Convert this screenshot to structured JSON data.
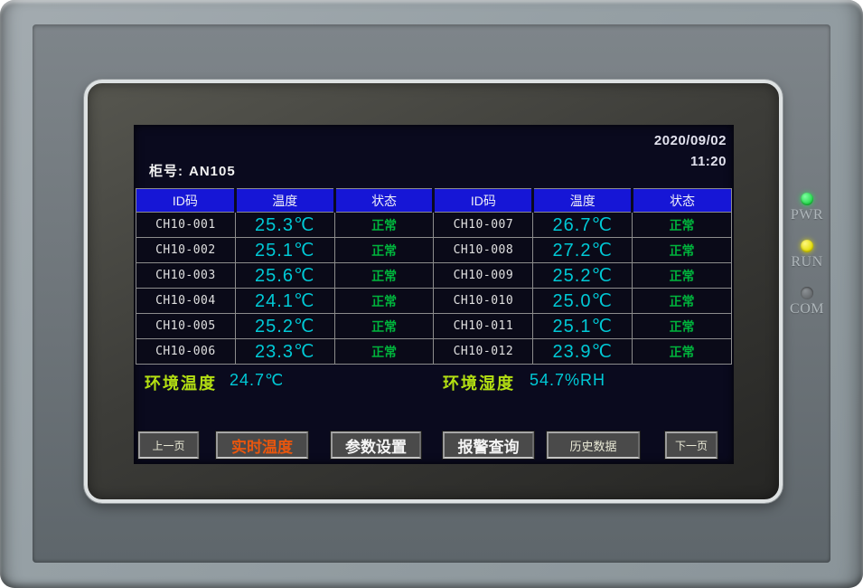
{
  "device": {
    "leds": [
      {
        "name": "PWR",
        "status": "on",
        "color": "#22d84a"
      },
      {
        "name": "RUN",
        "status": "on",
        "color": "#e2dc00"
      },
      {
        "name": "COM",
        "status": "off",
        "color": "#65696c"
      }
    ]
  },
  "screen": {
    "date": "2020/09/02",
    "time": "11:20",
    "cabinet_label": "柜号:",
    "cabinet_value": "AN105",
    "table": {
      "headers": [
        "ID码",
        "温度",
        "状态",
        "ID码",
        "温度",
        "状态"
      ],
      "rows": [
        [
          "CH10-001",
          "25.3℃",
          "正常",
          "CH10-007",
          "26.7℃",
          "正常"
        ],
        [
          "CH10-002",
          "25.1℃",
          "正常",
          "CH10-008",
          "27.2℃",
          "正常"
        ],
        [
          "CH10-003",
          "25.6℃",
          "正常",
          "CH10-009",
          "25.2℃",
          "正常"
        ],
        [
          "CH10-004",
          "24.1℃",
          "正常",
          "CH10-010",
          "25.0℃",
          "正常"
        ],
        [
          "CH10-005",
          "25.2℃",
          "正常",
          "CH10-011",
          "25.1℃",
          "正常"
        ],
        [
          "CH10-006",
          "23.3℃",
          "正常",
          "CH10-012",
          "23.9℃",
          "正常"
        ]
      ]
    },
    "environment": {
      "temp_label": "环境温度",
      "temp_value": "24.7℃",
      "humidity_label": "环境湿度",
      "humidity_value": "54.7%RH"
    },
    "nav_buttons": [
      {
        "label": "上一页",
        "active": false
      },
      {
        "label": "实时温度",
        "active": true
      },
      {
        "label": "参数设置",
        "active": false
      },
      {
        "label": "报警查询",
        "active": false
      },
      {
        "label": "历史数据",
        "active": false
      },
      {
        "label": "下一页",
        "active": false
      }
    ],
    "colors": {
      "lcd_background": "#0a0a1e",
      "table_header_blue": "#1616d6",
      "temperature_cyan": "#00c9d6",
      "status_green": "#00b43c",
      "env_label_green": "#b4e012",
      "active_button_orange": "#e8560e"
    }
  }
}
